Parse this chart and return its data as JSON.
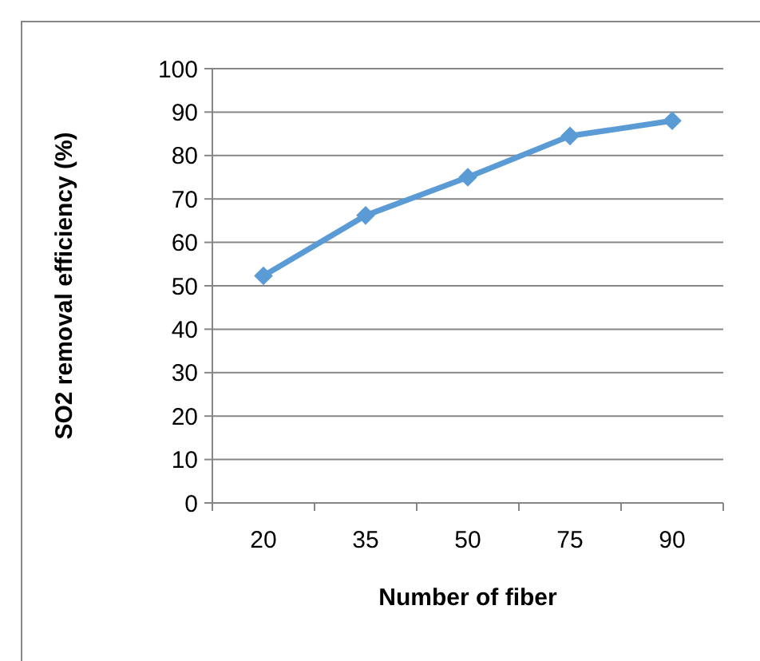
{
  "chart_data": {
    "type": "line",
    "xlabel": "Number of fiber",
    "ylabel": "SO2 removal efficiency (%)",
    "categories": [
      "20",
      "35",
      "50",
      "75",
      "90"
    ],
    "series": [
      {
        "color": "#5b9bd5",
        "values": [
          52.3,
          66.2,
          75,
          84.5,
          88
        ]
      }
    ],
    "ylim": [
      0,
      100
    ],
    "yticks": [
      0,
      10,
      20,
      30,
      40,
      50,
      60,
      70,
      80,
      90,
      100
    ],
    "grid": "y",
    "marker": "diamond",
    "line_style": "solid"
  }
}
